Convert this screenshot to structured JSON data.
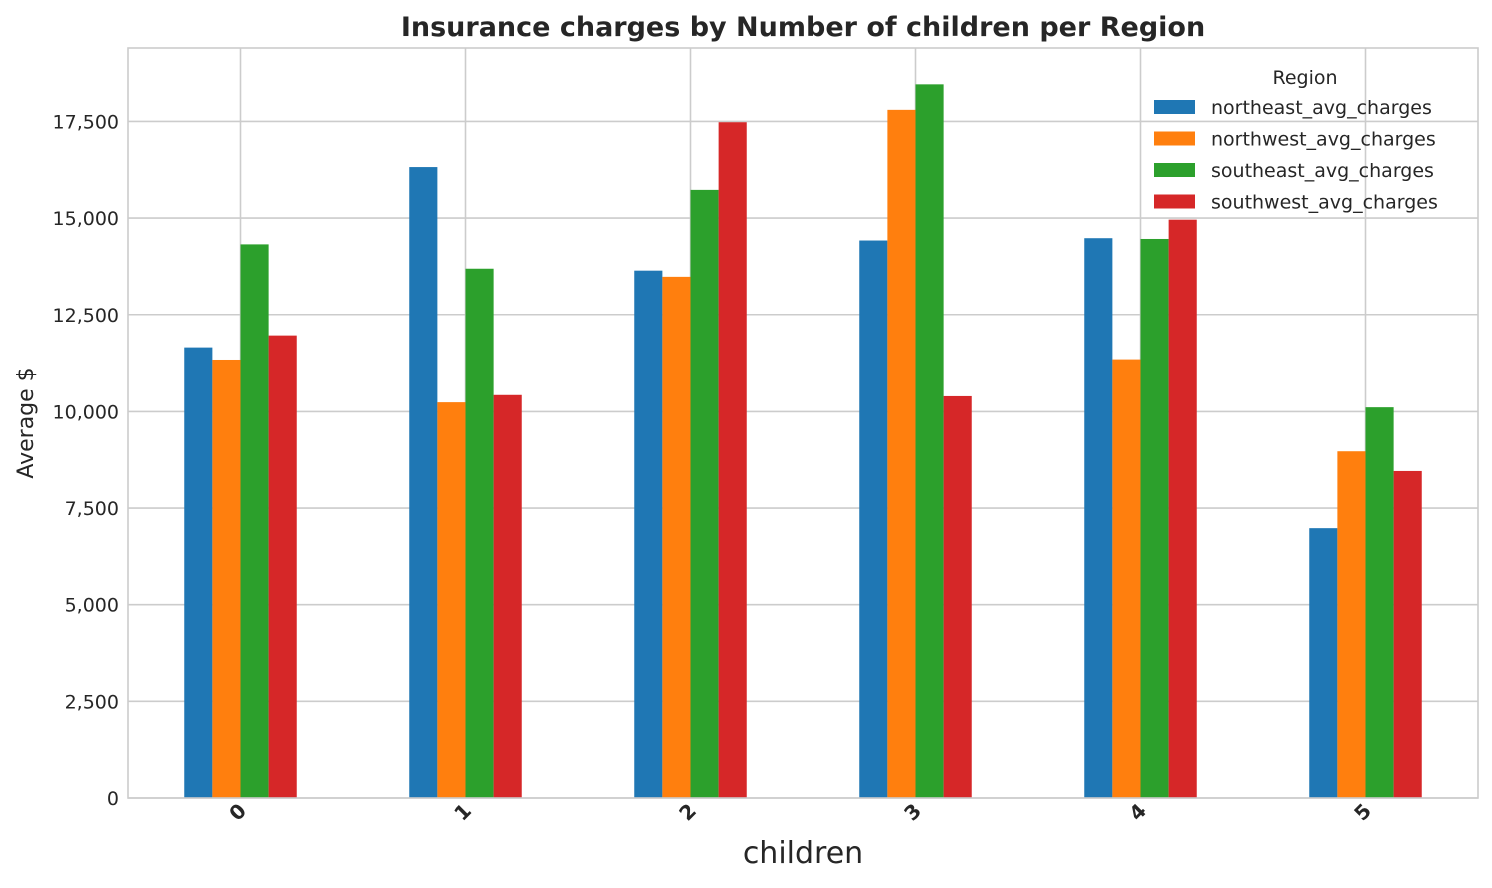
{
  "chart_data": {
    "type": "bar",
    "title": "Insurance charges by Number of children per Region",
    "xlabel": "children",
    "ylabel": "Average $",
    "categories": [
      "0",
      "1",
      "2",
      "3",
      "4",
      "5"
    ],
    "ylim": [
      0,
      19400
    ],
    "yticks": [
      0,
      2500,
      5000,
      7500,
      10000,
      12500,
      15000,
      17500
    ],
    "ytick_labels": [
      "0",
      "2,500",
      "5,000",
      "7,500",
      "10,000",
      "12,500",
      "15,000",
      "17,500"
    ],
    "grid": true,
    "legend": {
      "title": "Region",
      "placement": "top-right"
    },
    "series": [
      {
        "name": "northeast_avg_charges",
        "color": "#1f77b4",
        "values": [
          11650,
          16320,
          13640,
          14420,
          14480,
          6980
        ]
      },
      {
        "name": "northwest_avg_charges",
        "color": "#ff7f0e",
        "values": [
          11330,
          10240,
          13480,
          17800,
          11340,
          8970
        ]
      },
      {
        "name": "southeast_avg_charges",
        "color": "#2ca02c",
        "values": [
          14320,
          13690,
          15730,
          18460,
          14460,
          10110
        ]
      },
      {
        "name": "southwest_avg_charges",
        "color": "#d62728",
        "values": [
          11960,
          10430,
          17480,
          10400,
          14960,
          8460
        ]
      }
    ]
  }
}
